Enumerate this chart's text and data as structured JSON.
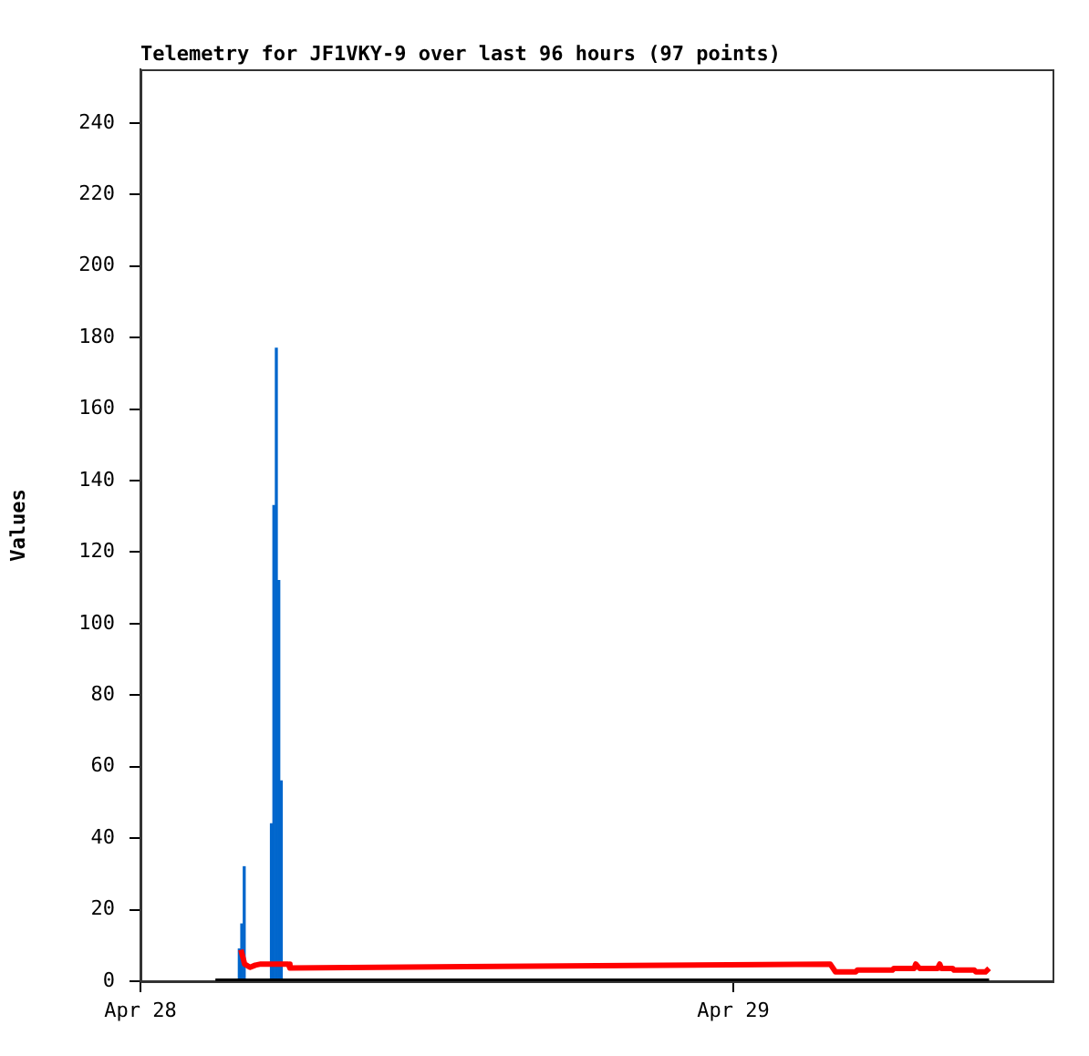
{
  "chart_data": {
    "type": "line",
    "title": "Telemetry for JF1VKY-9 over last 96 hours (97 points)",
    "ylabel": "Values",
    "xlim": [
      "--04-28T00:00",
      "--04-29T12:55"
    ],
    "xticks": [
      {
        "value": "--04-28T00:00",
        "label": "Apr 28"
      },
      {
        "value": "--04-29T00:00",
        "label": "Apr 29"
      }
    ],
    "ylim": [
      0,
      255
    ],
    "yticks": [
      0,
      20,
      40,
      60,
      80,
      100,
      120,
      140,
      160,
      180,
      200,
      220,
      240
    ],
    "grid": false,
    "legend": false,
    "marker": "none",
    "line_style": "solid",
    "series": [
      {
        "color": "#000000",
        "x": [
          "--04-28T03:02",
          "--04-29T10:21"
        ],
        "values": [
          0,
          0
        ]
      },
      {
        "color": "#ff0000",
        "x": [
          "--04-28T04:04",
          "--04-28T04:13",
          "--04-28T04:26",
          "--04-28T04:39",
          "--04-28T04:52",
          "--04-28T05:59",
          "--04-28T06:03",
          "--04-29T03:55",
          "--04-29T04:08",
          "--04-29T04:57",
          "--04-29T05:01",
          "--04-29T06:26",
          "--04-29T06:30",
          "--04-29T07:19",
          "--04-29T07:23",
          "--04-29T07:32",
          "--04-29T08:16",
          "--04-29T08:21",
          "--04-29T08:25",
          "--04-29T08:52",
          "--04-29T08:56",
          "--04-29T09:45",
          "--04-29T09:49",
          "--04-29T10:12",
          "--04-29T10:21"
        ],
        "values": [
          8.8,
          4.8,
          3.9,
          4.5,
          4.8,
          4.8,
          3.7,
          4.8,
          2.6,
          2.6,
          3.1,
          3.1,
          3.6,
          3.6,
          4.8,
          3.6,
          3.6,
          4.8,
          3.6,
          3.6,
          3.1,
          3.1,
          2.6,
          2.6,
          3.6
        ]
      },
      {
        "type": "bar",
        "color": "#0066cc",
        "x": [
          "--04-28T04:00",
          "--04-28T04:06",
          "--04-28T04:12",
          "--04-28T05:18",
          "--04-28T05:24",
          "--04-28T05:30",
          "--04-28T05:36",
          "--04-28T05:42"
        ],
        "values": [
          9,
          16,
          32,
          44,
          133,
          177,
          112,
          56
        ]
      }
    ]
  }
}
